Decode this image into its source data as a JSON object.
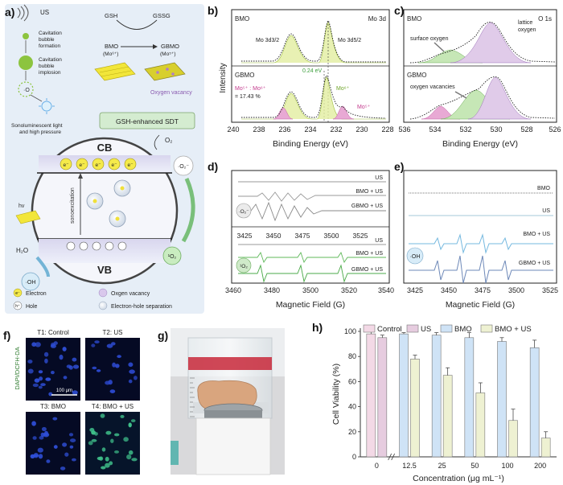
{
  "panels": {
    "a": {
      "label": "a)",
      "us": "US",
      "formation": [
        "Cavitation",
        "bubble",
        "formation"
      ],
      "implosion": [
        "Cavitation",
        "bubble",
        "implosion"
      ],
      "sonolum": [
        "Sonoluminescent light",
        "and high pressure"
      ],
      "gsh": "GSH",
      "gssg": "GSSG",
      "bmo": "BMO",
      "bmo_mo": "(Mo⁶⁺)",
      "gbmo": "GBMO",
      "gbmo_mo": "(Mo⁵⁺)",
      "oxygen_vacancy": "Oxygen vacancy",
      "banner": "GSH-enhanced SDT",
      "cb": "CB",
      "vb": "VB",
      "sonoexcitation": "sonoexcitation",
      "hv": "hv",
      "o2": "O₂",
      "o2_radical": "·O₂⁻",
      "singlet": "¹O₂",
      "h2o": "H₂O",
      "oh": "·OH",
      "electron_sym": "e⁻",
      "hole_sym": "h⁺",
      "legend": {
        "electron": "Electron",
        "vacancy": "Oxgen vacancy",
        "hole": "Hole",
        "separation": "Electron-hole separation"
      }
    },
    "b": {
      "label": "b)",
      "top_left": "BMO",
      "top_right": "Mo 3d",
      "peak1": "Mo 3d3/2",
      "peak2": "Mo 3d5/2",
      "shift": "0.24 eV",
      "bottom_left": "GBMO",
      "ratio_line1": "Mo⁵⁺ : Mo⁶⁺",
      "ratio_line2": "= 17.43 %",
      "mo6": "Mo⁶⁺",
      "mo5": "Mo⁵⁺",
      "ylabel": "Intensity",
      "xlabel": "Binding Energy (eV)",
      "ticks": [
        "240",
        "238",
        "236",
        "234",
        "232",
        "230",
        "228"
      ]
    },
    "c": {
      "label": "c)",
      "top_left": "BMO",
      "top_right": "O 1s",
      "surface": "surface oxygen",
      "lattice": [
        "lattice",
        "oxygen"
      ],
      "bottom_left": "GBMO",
      "vacancies": "oxygen vacancies",
      "xlabel": "Binding Energy (eV)",
      "ticks": [
        "536",
        "534",
        "532",
        "530",
        "528",
        "526"
      ]
    },
    "d": {
      "label": "d)",
      "top_curves": [
        "US",
        "BMO + US",
        "GBMO + US"
      ],
      "top_tag": "·O₂⁻",
      "top_ticks": [
        "3425",
        "3450",
        "3475",
        "3500",
        "3525"
      ],
      "bottom_curves": [
        "US",
        "BMO + US",
        "GBMO + US"
      ],
      "bottom_tag": "¹O₂",
      "ticks": [
        "3460",
        "3480",
        "3500",
        "3520",
        "3540"
      ],
      "xlabel": "Magnetic Field (G)"
    },
    "e": {
      "label": "e)",
      "curves": [
        "BMO",
        "US",
        "BMO + US",
        "GBMO + US"
      ],
      "tag": "·OH",
      "ticks": [
        "3425",
        "3450",
        "3475",
        "3500",
        "3525"
      ],
      "xlabel": "Magnetic Field (G)"
    },
    "f": {
      "label": "f)",
      "ylabel": "DAPI/DCFH-DA",
      "tiles": [
        "T1: Control",
        "T2: US",
        "T3: BMO",
        "T4: BMO + US"
      ],
      "scale": "100 μm"
    },
    "g": {
      "label": "g)"
    },
    "h": {
      "label": "h)"
    }
  },
  "chart_data": {
    "type": "bar",
    "title": "",
    "categories": [
      "0",
      "12.5",
      "25",
      "50",
      "100",
      "200"
    ],
    "series": [
      {
        "name": "Control",
        "values": [
          98,
          null,
          null,
          null,
          null,
          null
        ],
        "errors": [
          2,
          null,
          null,
          null,
          null,
          null
        ],
        "color": "#f3d9e6"
      },
      {
        "name": "US",
        "values": [
          95,
          null,
          null,
          null,
          null,
          null
        ],
        "errors": [
          2,
          null,
          null,
          null,
          null,
          null
        ],
        "color": "#e6ccdf"
      },
      {
        "name": "BMO",
        "values": [
          null,
          98,
          97,
          95,
          92,
          87
        ],
        "errors": [
          null,
          1,
          2,
          4,
          3,
          6
        ],
        "color": "#cfe3f6"
      },
      {
        "name": "BMO + US",
        "values": [
          null,
          78,
          65,
          51,
          29,
          15
        ],
        "errors": [
          null,
          3,
          6,
          8,
          9,
          5
        ],
        "color": "#eef1d2"
      }
    ],
    "xlabel": "Concentration (μg mL⁻¹)",
    "ylabel": "Cell Viability (%)",
    "ylim": [
      0,
      100
    ],
    "yticks": [
      "0",
      "20",
      "40",
      "60",
      "80",
      "100"
    ],
    "legend_position": "top"
  }
}
